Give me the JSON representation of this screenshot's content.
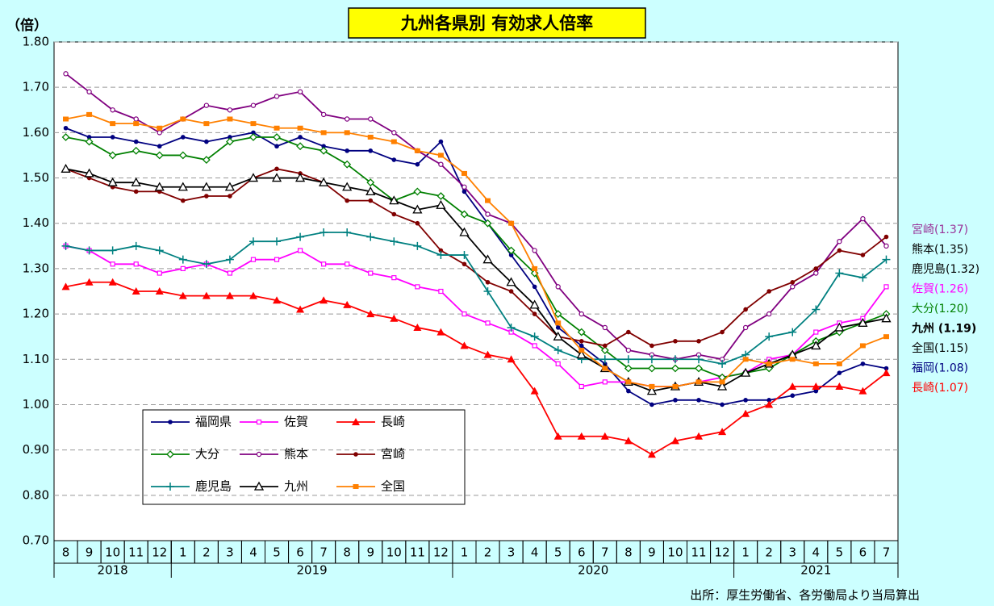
{
  "chart_data": {
    "type": "line",
    "title": "九州各県別 有効求人倍率",
    "y_label": "（倍）",
    "source": "出所：厚生労働省、各労働局より当局算出",
    "categories": [
      "8",
      "9",
      "10",
      "11",
      "12",
      "1",
      "2",
      "3",
      "4",
      "5",
      "6",
      "7",
      "8",
      "9",
      "10",
      "11",
      "12",
      "1",
      "2",
      "3",
      "4",
      "5",
      "6",
      "7",
      "8",
      "9",
      "10",
      "11",
      "12",
      "1",
      "2",
      "3",
      "4",
      "5",
      "6",
      "7"
    ],
    "x_groups": [
      {
        "label": "2018",
        "count": 5
      },
      {
        "label": "2019",
        "count": 12
      },
      {
        "label": "2020",
        "count": 12
      },
      {
        "label": "2021",
        "count": 7
      }
    ],
    "ylim": [
      0.7,
      1.8
    ],
    "yticks": [
      {
        "value": 0.7,
        "label": "0.70"
      },
      {
        "value": 0.8,
        "label": "0.80"
      },
      {
        "value": 0.9,
        "label": "0.90"
      },
      {
        "value": 1.0,
        "label": "1.00"
      },
      {
        "value": 1.1,
        "label": "1.10"
      },
      {
        "value": 1.2,
        "label": "1.20"
      },
      {
        "value": 1.3,
        "label": "1.30"
      },
      {
        "value": 1.4,
        "label": "1.40"
      },
      {
        "value": 1.5,
        "label": "1.50"
      },
      {
        "value": 1.6,
        "label": "1.60"
      },
      {
        "value": 1.7,
        "label": "1.70"
      },
      {
        "value": 1.8,
        "label": "1.80"
      }
    ],
    "grid": true,
    "series": [
      {
        "name": "福岡県",
        "color": "#000080",
        "marker": "dot",
        "values": [
          1.61,
          1.59,
          1.59,
          1.58,
          1.57,
          1.59,
          1.58,
          1.59,
          1.6,
          1.57,
          1.59,
          1.57,
          1.56,
          1.56,
          1.54,
          1.53,
          1.58,
          1.47,
          1.4,
          1.33,
          1.26,
          1.17,
          1.13,
          1.09,
          1.03,
          1.0,
          1.01,
          1.01,
          1.0,
          1.01,
          1.01,
          1.02,
          1.03,
          1.07,
          1.09,
          1.08
        ]
      },
      {
        "name": "佐賀",
        "color": "#ff00ff",
        "marker": "square-small",
        "values": [
          1.35,
          1.34,
          1.31,
          1.31,
          1.29,
          1.3,
          1.31,
          1.29,
          1.32,
          1.32,
          1.34,
          1.31,
          1.31,
          1.29,
          1.28,
          1.26,
          1.25,
          1.2,
          1.18,
          1.16,
          1.13,
          1.09,
          1.04,
          1.05,
          1.05,
          1.04,
          1.04,
          1.05,
          1.06,
          1.07,
          1.1,
          1.11,
          1.16,
          1.18,
          1.19,
          1.26
        ]
      },
      {
        "name": "長崎",
        "color": "#ff0000",
        "marker": "triangle-filled",
        "values": [
          1.26,
          1.27,
          1.27,
          1.25,
          1.25,
          1.24,
          1.24,
          1.24,
          1.24,
          1.23,
          1.21,
          1.23,
          1.22,
          1.2,
          1.19,
          1.17,
          1.16,
          1.13,
          1.11,
          1.1,
          1.03,
          0.93,
          0.93,
          0.93,
          0.92,
          0.89,
          0.92,
          0.93,
          0.94,
          0.98,
          1.0,
          1.04,
          1.04,
          1.04,
          1.03,
          1.07
        ]
      },
      {
        "name": "大分",
        "color": "#008000",
        "marker": "diamond-open",
        "values": [
          1.59,
          1.58,
          1.55,
          1.56,
          1.55,
          1.55,
          1.54,
          1.58,
          1.59,
          1.59,
          1.57,
          1.56,
          1.53,
          1.49,
          1.45,
          1.47,
          1.46,
          1.42,
          1.4,
          1.34,
          1.29,
          1.2,
          1.16,
          1.12,
          1.08,
          1.08,
          1.08,
          1.08,
          1.06,
          1.07,
          1.08,
          1.11,
          1.14,
          1.16,
          1.18,
          1.2
        ]
      },
      {
        "name": "熊本",
        "color": "#800080",
        "marker": "circle-open",
        "values": [
          1.73,
          1.69,
          1.65,
          1.63,
          1.6,
          1.63,
          1.66,
          1.65,
          1.66,
          1.68,
          1.69,
          1.64,
          1.63,
          1.63,
          1.6,
          1.56,
          1.53,
          1.48,
          1.42,
          1.4,
          1.34,
          1.26,
          1.2,
          1.17,
          1.12,
          1.11,
          1.1,
          1.11,
          1.1,
          1.17,
          1.2,
          1.26,
          1.29,
          1.36,
          1.41,
          1.35
        ]
      },
      {
        "name": "宮崎",
        "color": "#800000",
        "marker": "dot",
        "values": [
          1.52,
          1.5,
          1.48,
          1.47,
          1.47,
          1.45,
          1.46,
          1.46,
          1.5,
          1.52,
          1.51,
          1.49,
          1.45,
          1.45,
          1.42,
          1.4,
          1.34,
          1.31,
          1.27,
          1.25,
          1.2,
          1.15,
          1.14,
          1.13,
          1.16,
          1.13,
          1.14,
          1.14,
          1.16,
          1.21,
          1.25,
          1.27,
          1.3,
          1.34,
          1.33,
          1.37
        ]
      },
      {
        "name": "鹿児島",
        "color": "#008080",
        "marker": "plus",
        "values": [
          1.35,
          1.34,
          1.34,
          1.35,
          1.34,
          1.32,
          1.31,
          1.32,
          1.36,
          1.36,
          1.37,
          1.38,
          1.38,
          1.37,
          1.36,
          1.35,
          1.33,
          1.33,
          1.25,
          1.17,
          1.15,
          1.12,
          1.1,
          1.1,
          1.1,
          1.1,
          1.1,
          1.1,
          1.09,
          1.11,
          1.15,
          1.16,
          1.21,
          1.29,
          1.28,
          1.32
        ]
      },
      {
        "name": "九州",
        "color": "#000000",
        "marker": "triangle-open",
        "values": [
          1.52,
          1.51,
          1.49,
          1.49,
          1.48,
          1.48,
          1.48,
          1.48,
          1.5,
          1.5,
          1.5,
          1.49,
          1.48,
          1.47,
          1.45,
          1.43,
          1.44,
          1.38,
          1.32,
          1.27,
          1.22,
          1.15,
          1.11,
          1.08,
          1.05,
          1.03,
          1.04,
          1.05,
          1.04,
          1.07,
          1.09,
          1.11,
          1.13,
          1.17,
          1.18,
          1.19
        ]
      },
      {
        "name": "全国",
        "color": "#ff8000",
        "marker": "square",
        "values": [
          1.63,
          1.64,
          1.62,
          1.62,
          1.61,
          1.63,
          1.62,
          1.63,
          1.62,
          1.61,
          1.61,
          1.6,
          1.6,
          1.59,
          1.58,
          1.56,
          1.55,
          1.51,
          1.45,
          1.4,
          1.3,
          1.18,
          1.12,
          1.08,
          1.05,
          1.04,
          1.04,
          1.05,
          1.05,
          1.1,
          1.09,
          1.1,
          1.09,
          1.09,
          1.13,
          1.15
        ]
      }
    ],
    "end_labels": [
      {
        "text": "宮崎(1.37)",
        "color": "#993399",
        "bold": false
      },
      {
        "text": "熊本(1.35)",
        "color": "#000000",
        "bold": false
      },
      {
        "text": "鹿児島(1.32)",
        "color": "#000000",
        "bold": false
      },
      {
        "text": "佐賀(1.26)",
        "color": "#ff00ff",
        "bold": false
      },
      {
        "text": "大分(1.20)",
        "color": "#008000",
        "bold": false
      },
      {
        "text": "九州 (1.19)",
        "color": "#000000",
        "bold": true
      },
      {
        "text": "全国(1.15)",
        "color": "#000000",
        "bold": false
      },
      {
        "text": "福岡(1.08)",
        "color": "#000080",
        "bold": false
      },
      {
        "text": "長崎(1.07)",
        "color": "#ff0000",
        "bold": false
      }
    ]
  }
}
